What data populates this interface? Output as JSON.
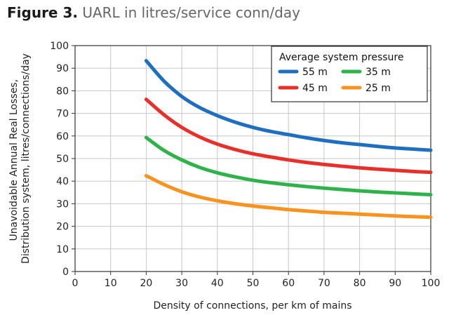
{
  "figure": {
    "label": "Figure 3.",
    "title": "UARL in litres/service conn/day"
  },
  "chart_data": {
    "type": "line",
    "xlabel": "Density of connections, per km of mains",
    "ylabel_lines": [
      "Unavoidable Annual Real Losses,",
      "Distribution system, litres/connections/day"
    ],
    "xlim": [
      0,
      100
    ],
    "ylim": [
      0,
      100
    ],
    "x_ticks": [
      0,
      10,
      20,
      30,
      40,
      50,
      60,
      70,
      80,
      90,
      100
    ],
    "y_ticks": [
      0,
      10,
      20,
      30,
      40,
      50,
      60,
      70,
      80,
      90,
      100
    ],
    "grid": true,
    "legend_title": "Average system pressure",
    "legend_position": "top-right",
    "x": [
      20,
      25,
      30,
      35,
      40,
      45,
      50,
      55,
      60,
      65,
      70,
      75,
      80,
      85,
      90,
      95,
      100
    ],
    "series": [
      {
        "name": "55 m",
        "color": "#1f6fc1",
        "values": [
          93.3,
          84.3,
          77.5,
          72.6,
          69.0,
          66.1,
          63.8,
          62.0,
          60.6,
          59.2,
          58.0,
          57.0,
          56.2,
          55.4,
          54.7,
          54.2,
          53.7
        ]
      },
      {
        "name": "45 m",
        "color": "#e8302a",
        "values": [
          76.2,
          69.4,
          63.8,
          59.6,
          56.4,
          54.0,
          52.1,
          50.7,
          49.4,
          48.3,
          47.4,
          46.6,
          45.9,
          45.3,
          44.8,
          44.3,
          43.9
        ]
      },
      {
        "name": "35 m",
        "color": "#2eb24a",
        "values": [
          59.3,
          53.6,
          49.4,
          46.1,
          43.7,
          41.9,
          40.4,
          39.3,
          38.4,
          37.6,
          36.9,
          36.3,
          35.7,
          35.2,
          34.8,
          34.4,
          34.0
        ]
      },
      {
        "name": "25 m",
        "color": "#f7931e",
        "values": [
          42.4,
          38.5,
          35.3,
          33.0,
          31.3,
          30.0,
          29.0,
          28.2,
          27.4,
          26.8,
          26.2,
          25.8,
          25.4,
          25.0,
          24.6,
          24.3,
          24.0
        ]
      }
    ]
  }
}
